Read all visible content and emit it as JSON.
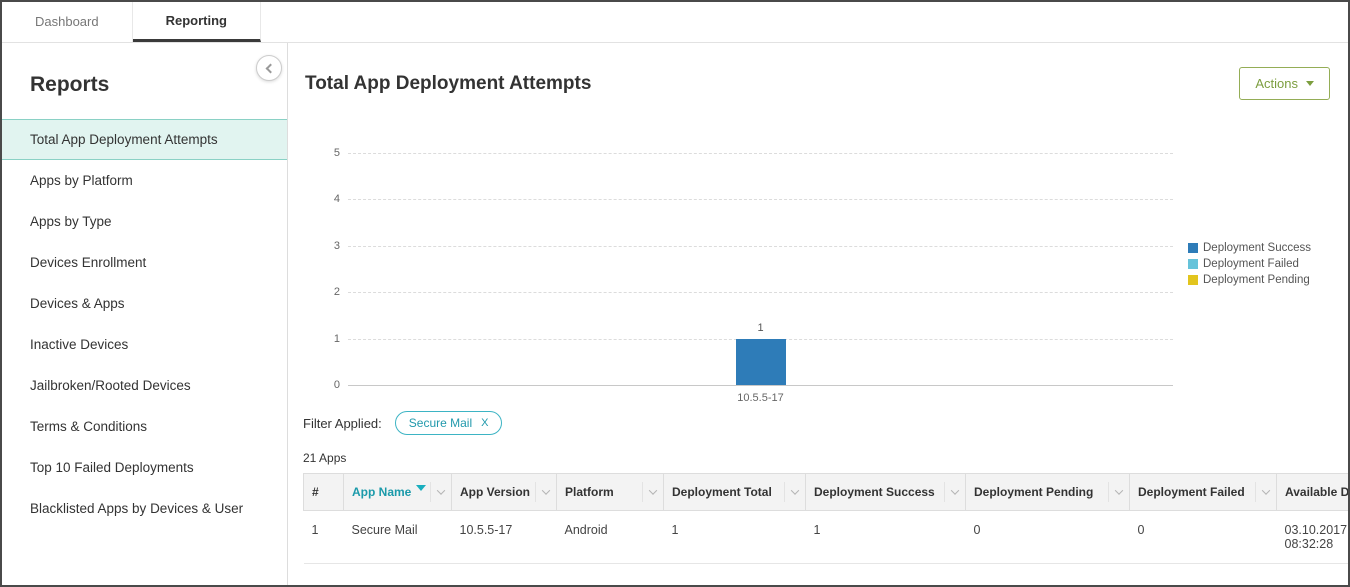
{
  "tabs": [
    {
      "label": "Dashboard"
    },
    {
      "label": "Reporting"
    }
  ],
  "sidebar": {
    "title": "Reports",
    "items": [
      {
        "label": "Total App Deployment Attempts",
        "selected": true
      },
      {
        "label": "Apps by Platform",
        "selected": false
      },
      {
        "label": "Apps by Type",
        "selected": false
      },
      {
        "label": "Devices Enrollment",
        "selected": false
      },
      {
        "label": "Devices & Apps",
        "selected": false
      },
      {
        "label": "Inactive Devices",
        "selected": false
      },
      {
        "label": "Jailbroken/Rooted Devices",
        "selected": false
      },
      {
        "label": "Terms & Conditions",
        "selected": false
      },
      {
        "label": "Top 10 Failed Deployments",
        "selected": false
      },
      {
        "label": "Blacklisted Apps by Devices & User",
        "selected": false
      }
    ]
  },
  "main": {
    "title": "Total App Deployment Attempts",
    "actions_label": "Actions",
    "filter_label": "Filter Applied:",
    "filter_chip": "Secure Mail",
    "filter_chip_close": "X",
    "apps_count": "21 Apps"
  },
  "colors": {
    "accent_teal": "#1b9aaa",
    "action_green": "#7c9e3f",
    "selected_item_bg": "#e1f4f0",
    "bar_blue": "#2e7cb8",
    "legend_failed_blue": "#66c3da",
    "legend_pending_yellow": "#e2c51e"
  },
  "chart_data": {
    "type": "bar",
    "categories": [
      "10.5.5-17"
    ],
    "series": [
      {
        "name": "Deployment Success",
        "color": "#2e7cb8",
        "values": [
          1
        ]
      },
      {
        "name": "Deployment Failed",
        "color": "#66c3da",
        "values": [
          0
        ]
      },
      {
        "name": "Deployment Pending",
        "color": "#e2c51e",
        "values": [
          0
        ]
      }
    ],
    "bar_total_labels": [
      "1"
    ],
    "ylim": [
      0,
      5
    ],
    "yticks": [
      0,
      1,
      2,
      3,
      4,
      5
    ],
    "grid": "dashed-horizontal",
    "legend_position": "right",
    "title": "Total App Deployment Attempts",
    "xlabel": "",
    "ylabel": ""
  },
  "table": {
    "headers": [
      {
        "label": "#",
        "dropdown": false,
        "sorted": false
      },
      {
        "label": "App Name",
        "dropdown": true,
        "sorted": true
      },
      {
        "label": "App Version",
        "dropdown": true,
        "sorted": false
      },
      {
        "label": "Platform",
        "dropdown": true,
        "sorted": false
      },
      {
        "label": "Deployment Total",
        "dropdown": true,
        "sorted": false
      },
      {
        "label": "Deployment Success",
        "dropdown": true,
        "sorted": false
      },
      {
        "label": "Deployment Pending",
        "dropdown": true,
        "sorted": false
      },
      {
        "label": "Deployment Failed",
        "dropdown": true,
        "sorted": false
      },
      {
        "label": "Available D",
        "dropdown": false,
        "sorted": false
      }
    ],
    "rows": [
      [
        "1",
        "Secure Mail",
        "10.5.5-17",
        "Android",
        "1",
        "1",
        "0",
        "0",
        "03.10.2017 08:32:28"
      ]
    ]
  }
}
